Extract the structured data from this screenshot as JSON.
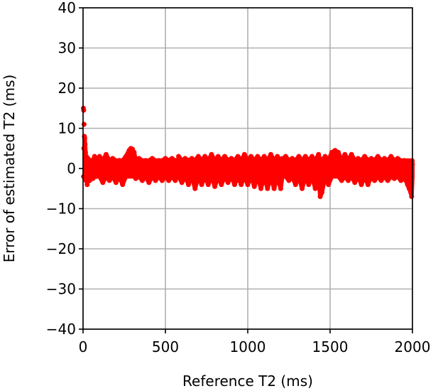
{
  "chart_data": {
    "type": "scatter",
    "title": "",
    "xlabel": "Reference T2 (ms)",
    "ylabel": "Error of estimated T2 (ms)",
    "xlim": [
      0,
      2000
    ],
    "ylim": [
      -40,
      40
    ],
    "xticks": [
      0,
      500,
      1000,
      1500,
      2000
    ],
    "xtick_labels": [
      "0",
      "500",
      "1000",
      "1500",
      "2000"
    ],
    "yticks": [
      -40,
      -30,
      -20,
      -10,
      0,
      10,
      20,
      30,
      40
    ],
    "ytick_labels": [
      "−40",
      "−30",
      "−20",
      "−10",
      "0",
      "10",
      "20",
      "30",
      "40"
    ],
    "grid": true,
    "legend": "none",
    "marker_color": "#ff0000",
    "series": [
      {
        "points": [
          [
            2,
            15
          ],
          [
            4,
            14.5
          ],
          [
            6,
            11
          ],
          [
            8,
            8
          ],
          [
            10,
            7.5
          ],
          [
            5,
            5
          ],
          [
            3,
            -2
          ],
          [
            12,
            6
          ],
          [
            15,
            4
          ],
          [
            18,
            -3
          ],
          [
            20,
            3
          ],
          [
            25,
            -4
          ],
          [
            30,
            2.5
          ],
          [
            40,
            -3
          ],
          [
            50,
            2
          ],
          [
            60,
            -2.5
          ],
          [
            70,
            3
          ],
          [
            80,
            -2
          ],
          [
            100,
            3
          ],
          [
            120,
            -3.5
          ],
          [
            140,
            3.5
          ],
          [
            160,
            -3
          ],
          [
            180,
            2.5
          ],
          [
            200,
            -3.5
          ],
          [
            220,
            2
          ],
          [
            240,
            -4
          ],
          [
            260,
            3
          ],
          [
            280,
            4.5
          ],
          [
            290,
            5
          ],
          [
            300,
            4.8
          ],
          [
            310,
            4
          ],
          [
            320,
            -2.5
          ],
          [
            340,
            2.5
          ],
          [
            360,
            -3
          ],
          [
            380,
            2
          ],
          [
            400,
            -3.5
          ],
          [
            420,
            2.5
          ],
          [
            440,
            -3
          ],
          [
            460,
            2
          ],
          [
            480,
            -3
          ],
          [
            500,
            2.5
          ],
          [
            520,
            -3
          ],
          [
            540,
            2.5
          ],
          [
            560,
            -3
          ],
          [
            570,
            2
          ],
          [
            580,
            3
          ],
          [
            600,
            -3.5
          ],
          [
            620,
            2.5
          ],
          [
            640,
            -4
          ],
          [
            660,
            2.5
          ],
          [
            680,
            -5
          ],
          [
            700,
            3
          ],
          [
            720,
            -4
          ],
          [
            740,
            3
          ],
          [
            760,
            -4
          ],
          [
            780,
            3.5
          ],
          [
            800,
            -4.5
          ],
          [
            820,
            3
          ],
          [
            840,
            -4
          ],
          [
            860,
            3
          ],
          [
            880,
            -3.5
          ],
          [
            900,
            2.5
          ],
          [
            920,
            -4
          ],
          [
            940,
            3
          ],
          [
            960,
            -4
          ],
          [
            980,
            3.5
          ],
          [
            1000,
            -4
          ],
          [
            1020,
            3
          ],
          [
            1040,
            -4.5
          ],
          [
            1060,
            3
          ],
          [
            1080,
            -5
          ],
          [
            1100,
            3
          ],
          [
            1120,
            -5
          ],
          [
            1140,
            3.5
          ],
          [
            1160,
            -5
          ],
          [
            1180,
            3
          ],
          [
            1200,
            -5
          ],
          [
            1210,
            2.5
          ],
          [
            1230,
            3
          ],
          [
            1250,
            -3
          ],
          [
            1270,
            2.5
          ],
          [
            1290,
            -4
          ],
          [
            1310,
            3
          ],
          [
            1330,
            -5
          ],
          [
            1350,
            3
          ],
          [
            1370,
            -4
          ],
          [
            1390,
            3
          ],
          [
            1410,
            -5
          ],
          [
            1430,
            3.5
          ],
          [
            1440,
            -7
          ],
          [
            1450,
            -6
          ],
          [
            1470,
            3
          ],
          [
            1490,
            -4
          ],
          [
            1510,
            4
          ],
          [
            1530,
            4.5
          ],
          [
            1550,
            4
          ],
          [
            1570,
            -3
          ],
          [
            1590,
            3.5
          ],
          [
            1610,
            -3
          ],
          [
            1630,
            3.5
          ],
          [
            1650,
            -3.5
          ],
          [
            1670,
            2.5
          ],
          [
            1690,
            -4
          ],
          [
            1710,
            3
          ],
          [
            1730,
            -4
          ],
          [
            1750,
            2.5
          ],
          [
            1770,
            -3
          ],
          [
            1790,
            3
          ],
          [
            1810,
            -3
          ],
          [
            1830,
            2.5
          ],
          [
            1850,
            -3
          ],
          [
            1870,
            3
          ],
          [
            1890,
            -2.5
          ],
          [
            1910,
            2.5
          ],
          [
            1930,
            -3
          ],
          [
            1950,
            2
          ],
          [
            1960,
            -3
          ],
          [
            1970,
            -4
          ],
          [
            1980,
            -5
          ],
          [
            1990,
            -6
          ],
          [
            1995,
            -7
          ],
          [
            2000,
            1
          ]
        ]
      }
    ]
  }
}
